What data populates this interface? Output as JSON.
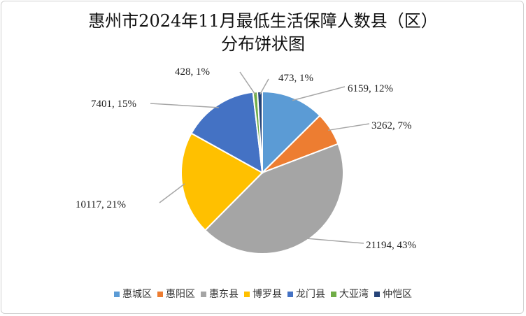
{
  "chart_data": {
    "type": "pie",
    "title_line1": "惠州市2024年11月最低生活保障人数县（区）",
    "title_line2": "分布饼状图",
    "categories": [
      "惠城区",
      "惠阳区",
      "惠东县",
      "博罗县",
      "龙门县",
      "大亚湾",
      "仲恺区"
    ],
    "values": [
      6159,
      3262,
      21194,
      10117,
      7401,
      428,
      473
    ],
    "labels": [
      "6159, 12%",
      "3262, 7%",
      "21194, 43%",
      "10117, 21%",
      "7401, 15%",
      "428, 1%",
      "473, 1%"
    ],
    "colors": [
      "#5B9BD5",
      "#ED7D31",
      "#A5A5A5",
      "#FFC000",
      "#4472C4",
      "#70AD47",
      "#264478"
    ],
    "legend_position": "bottom"
  }
}
